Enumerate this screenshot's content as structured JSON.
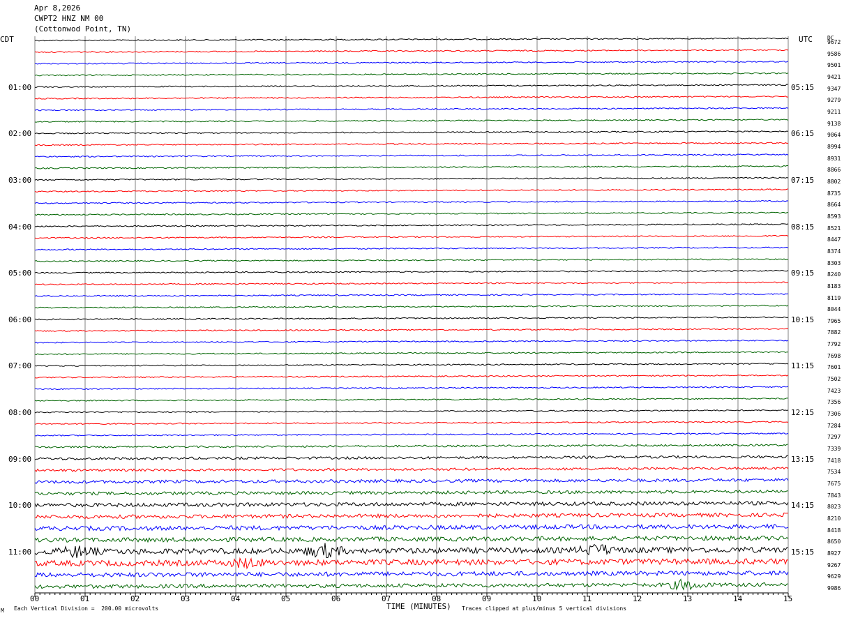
{
  "header": {
    "date": "Apr 8,2026",
    "station": "CWPT2 HNZ NM 00",
    "location": "(Cottonwod Point, TN)"
  },
  "left_axis_title": "CDT",
  "right_axis_title": "UTC",
  "dc_title": "DC",
  "footer": {
    "scale_note": "Each Vertical Division =  200.00 microvolts",
    "xlabel": "TIME (MINUTES)",
    "clip_note": "Traces clipped at plus/minus 5 vertical divisions",
    "corner_mark": "M"
  },
  "colors": {
    "trace_cycle": [
      "#000000",
      "#ff0000",
      "#0000ff",
      "#006400"
    ],
    "grid": "#808080"
  },
  "chart_data": {
    "type": "line",
    "title": "",
    "xlabel": "TIME (MINUTES)",
    "xlim": [
      0,
      15
    ],
    "x_ticks": [
      "00",
      "01",
      "02",
      "03",
      "04",
      "05",
      "06",
      "07",
      "08",
      "09",
      "10",
      "11",
      "12",
      "13",
      "14",
      "15"
    ],
    "trace_interval_minutes": 15,
    "left_hour_labels": [
      "01:00",
      "02:00",
      "03:00",
      "04:00",
      "05:00",
      "06:00",
      "07:00",
      "08:00",
      "09:00",
      "10:00",
      "11:00"
    ],
    "right_hour_labels": [
      "05:15",
      "06:15",
      "07:15",
      "08:15",
      "09:15",
      "10:15",
      "11:15",
      "12:15",
      "13:15",
      "14:15",
      "15:15"
    ],
    "dc_offsets": [
      9672,
      9586,
      9501,
      9421,
      9347,
      9279,
      9211,
      9138,
      9064,
      8994,
      8931,
      8866,
      8802,
      8735,
      8664,
      8593,
      8521,
      8447,
      8374,
      8303,
      8240,
      8183,
      8119,
      8044,
      7965,
      7882,
      7792,
      7698,
      7601,
      7502,
      7423,
      7356,
      7306,
      7284,
      7297,
      7339,
      7418,
      7534,
      7675,
      7843,
      8023,
      8210,
      8418,
      8650,
      8927,
      9267,
      9629,
      9986
    ],
    "noise_level": [
      1,
      1,
      1,
      1,
      1,
      1,
      1,
      1,
      1,
      1,
      1,
      1,
      1,
      1,
      1,
      1,
      1,
      1,
      1,
      1,
      1,
      1,
      1,
      1,
      1,
      1,
      1,
      1,
      1,
      1,
      1,
      1,
      1,
      1,
      1,
      1.5,
      2,
      2,
      2.5,
      2.5,
      3,
      3,
      3.5,
      3.5,
      4.5,
      4.5,
      3.5,
      3
    ],
    "events": [
      {
        "trace": 44,
        "minute": 0.85,
        "amplitude": 4
      },
      {
        "trace": 44,
        "minute": 5.75,
        "amplitude": 5
      },
      {
        "trace": 44,
        "minute": 11.2,
        "amplitude": 4
      },
      {
        "trace": 45,
        "minute": 4.2,
        "amplitude": 3
      },
      {
        "trace": 47,
        "minute": 12.95,
        "amplitude": 4
      }
    ]
  }
}
